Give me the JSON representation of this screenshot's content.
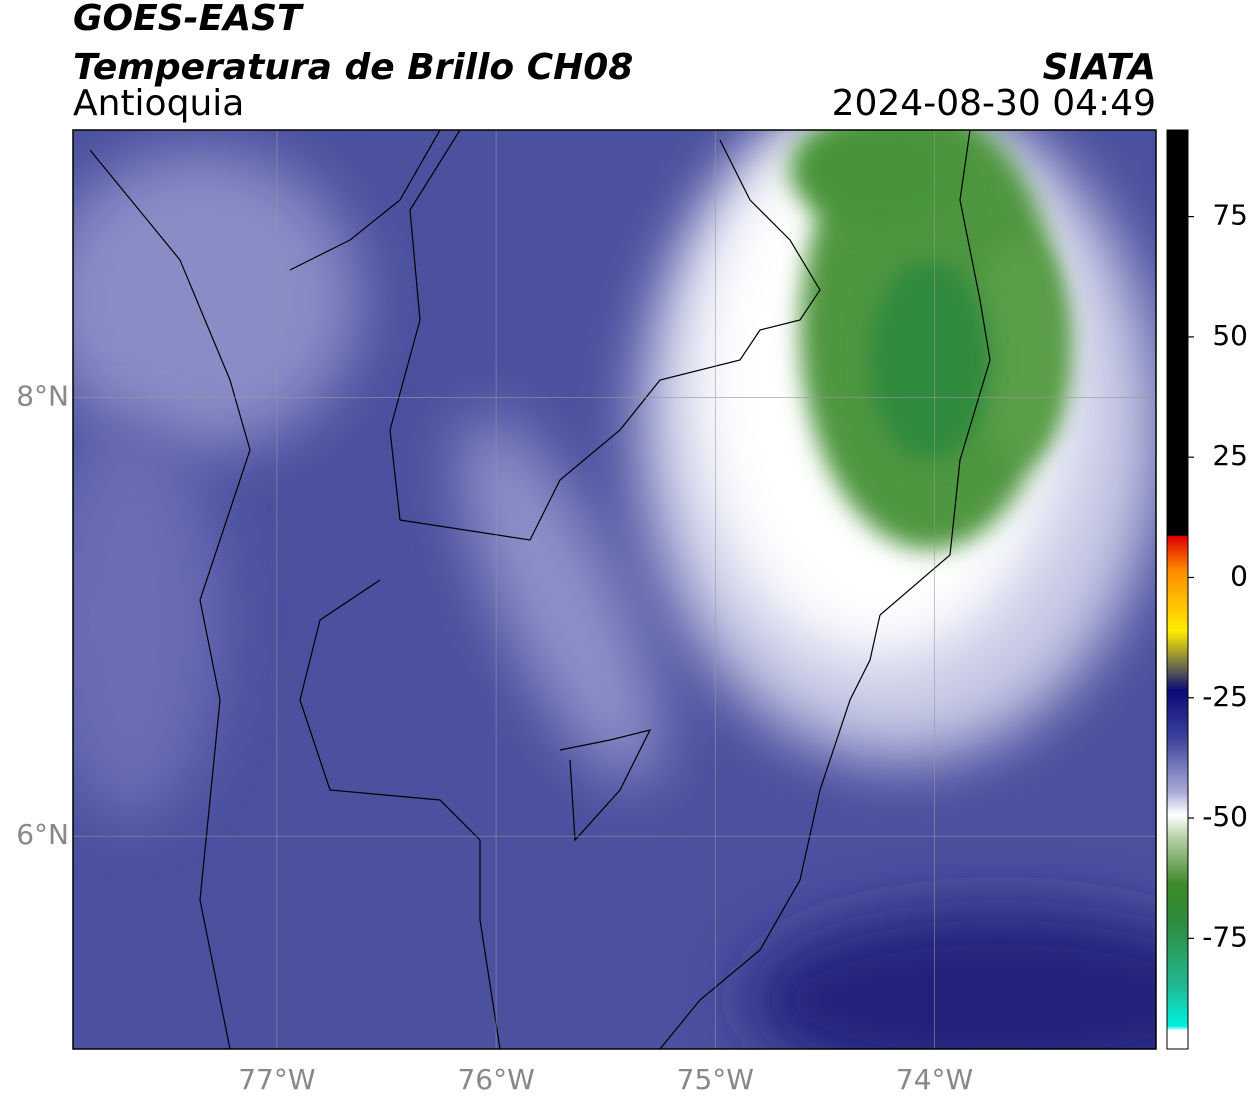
{
  "header": {
    "line1": "GOES-EAST",
    "title": "Temperatura de Brillo CH08",
    "agency": "SIATA",
    "region": "Antioquia",
    "timestamp": "2024-08-30 04:49"
  },
  "map": {
    "xlim": [
      -77.93,
      -72.99
    ],
    "ylim": [
      5.03,
      9.22
    ],
    "xticks": [
      {
        "value": -77,
        "label": "77°W"
      },
      {
        "value": -76,
        "label": "76°W"
      },
      {
        "value": -75,
        "label": "75°W"
      },
      {
        "value": -74,
        "label": "74°W"
      }
    ],
    "yticks": [
      {
        "value": 8,
        "label": "8°N"
      },
      {
        "value": 6,
        "label": "6°N"
      }
    ],
    "grid": true
  },
  "colorbar": {
    "lim": [
      -98,
      93
    ],
    "ticks": [
      75,
      50,
      25,
      0,
      -25,
      -50,
      -75
    ]
  }
}
